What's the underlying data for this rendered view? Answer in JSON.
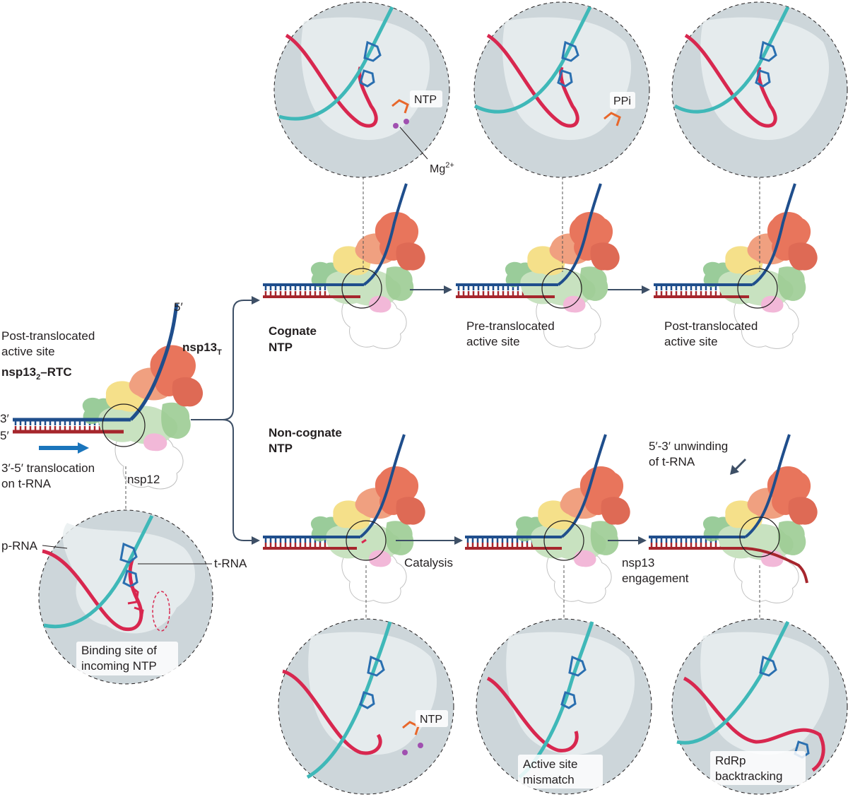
{
  "colors": {
    "template_strand": "#1f4e8c",
    "primer_strand": "#a6262d",
    "ribbon_pink": "#d8274f",
    "ribbon_cyan": "#3fb8b8",
    "arrow_blue": "#1a75bc",
    "arrow_dark": "#3d4f66",
    "inset_bg": "#cdd6da",
    "nsp13_orange": "#e8755c",
    "nsp13_salmon": "#f0a080",
    "nsp13_yellow": "#f5e08a",
    "nsp_green": "#8fc68f",
    "nsp_lightgreen": "#c8e2c0",
    "nsp_pink": "#f2b8d8"
  },
  "left_panel": {
    "five_prime": "5′",
    "title_line1": "Post-translocated",
    "title_line2": "active site",
    "complex_name": "nsp13",
    "complex_sub": "2",
    "complex_suffix": "–RTC",
    "nsp13t": "nsp13",
    "nsp13t_sub": "T",
    "three_prime": "3′",
    "five_prime_bottom": "5′",
    "translocation_line1": "3′-5′ translocation",
    "translocation_line2": "on t-RNA",
    "nsp12": "nsp12",
    "p_rna": "p-RNA",
    "t_rna": "t-RNA",
    "binding_line1": "Binding site of",
    "binding_line2": "incoming NTP"
  },
  "cognate": {
    "label_line1": "Cognate",
    "label_line2": "NTP",
    "ntp": "NTP",
    "mg": "Mg",
    "mg_sup": "2+",
    "ppi": "PPi",
    "pre_line1": "Pre-translocated",
    "pre_line2": "active site",
    "post_line1": "Post-translocated",
    "post_line2": "active site"
  },
  "noncognate": {
    "label_line1": "Non-cognate",
    "label_line2": "NTP",
    "catalysis": "Catalysis",
    "nsp13_line1": "nsp13",
    "nsp13_line2": "engagement",
    "unwinding_line1": "5′-3′ unwinding",
    "unwinding_line2": "of t-RNA",
    "ntp": "NTP",
    "mismatch_line1": "Active site",
    "mismatch_line2": "mismatch",
    "backtrack_line1": "RdRp",
    "backtrack_line2": "backtracking"
  }
}
